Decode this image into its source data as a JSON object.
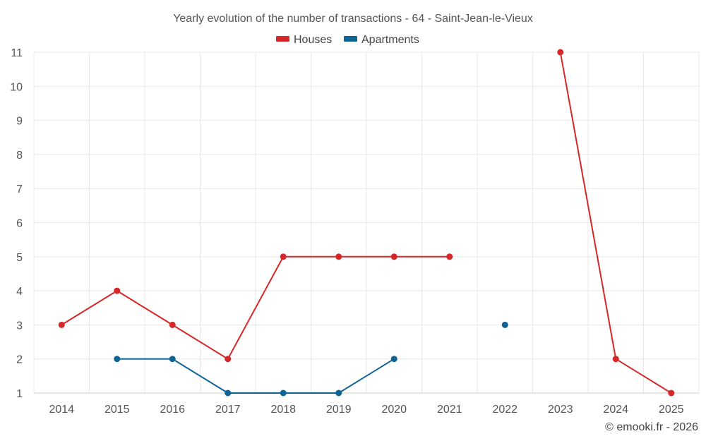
{
  "chart_data": {
    "type": "line",
    "title": "Yearly evolution of the number of transactions - 64 - Saint-Jean-le-Vieux",
    "categories": [
      "2014",
      "2015",
      "2016",
      "2017",
      "2018",
      "2019",
      "2020",
      "2021",
      "2022",
      "2023",
      "2024",
      "2025"
    ],
    "series": [
      {
        "name": "Houses",
        "color": "#d62728",
        "values": [
          3,
          4,
          3,
          2,
          5,
          5,
          5,
          5,
          null,
          11,
          2,
          1
        ]
      },
      {
        "name": "Apartments",
        "color": "#0e6495",
        "values": [
          null,
          2,
          2,
          1,
          1,
          1,
          2,
          null,
          3,
          null,
          null,
          null
        ]
      }
    ],
    "yticks": [
      "1",
      "2",
      "3",
      "4",
      "5",
      "6",
      "7",
      "8",
      "9",
      "10",
      "11"
    ],
    "ylim": [
      1,
      11
    ],
    "xlabel": "",
    "ylabel": "",
    "grid": true,
    "legend_position": "top-center"
  },
  "credit": "© emooki.fr - 2026"
}
